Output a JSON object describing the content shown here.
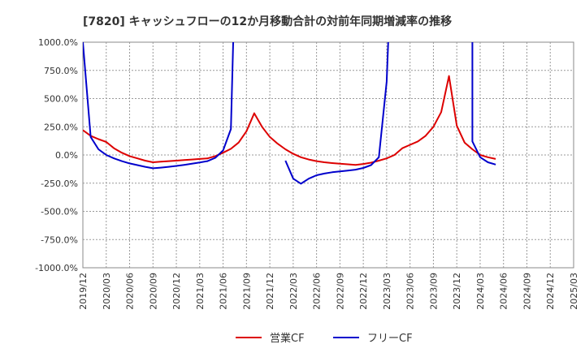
{
  "chart_data": {
    "type": "line",
    "title": "[7820]  キャッシュフローの12か月移動合計の対前年同期増減率の推移",
    "xlabel": "",
    "ylabel": "",
    "ylim": [
      -1000,
      1000
    ],
    "yticks": [
      1000,
      750,
      500,
      250,
      0,
      -250,
      -500,
      -750,
      -1000
    ],
    "ytick_labels": [
      "1000.0%",
      "750.0%",
      "500.0%",
      "250.0%",
      "0.0%",
      "-250.0%",
      "-500.0%",
      "-750.0%",
      "-1000.0%"
    ],
    "x_categories": [
      "2019/12",
      "2020/03",
      "2020/06",
      "2020/09",
      "2020/12",
      "2021/03",
      "2021/06",
      "2021/09",
      "2021/12",
      "2022/03",
      "2022/06",
      "2022/09",
      "2022/12",
      "2023/03",
      "2023/06",
      "2023/09",
      "2023/12",
      "2024/03",
      "2024/06",
      "2024/09",
      "2024/12",
      "2025/03"
    ],
    "x_month_index_start": "2019/12",
    "legend_position": "bottom",
    "series": [
      {
        "name": "営業CF",
        "color": "#dd0000",
        "points": [
          [
            0,
            220
          ],
          [
            1,
            170
          ],
          [
            2,
            140
          ],
          [
            3,
            115
          ],
          [
            4,
            60
          ],
          [
            5,
            20
          ],
          [
            6,
            -10
          ],
          [
            7,
            -30
          ],
          [
            8,
            -50
          ],
          [
            9,
            -65
          ],
          [
            10,
            -60
          ],
          [
            11,
            -55
          ],
          [
            12,
            -50
          ],
          [
            13,
            -45
          ],
          [
            14,
            -40
          ],
          [
            15,
            -35
          ],
          [
            16,
            -30
          ],
          [
            17,
            -10
          ],
          [
            18,
            20
          ],
          [
            19,
            55
          ],
          [
            20,
            110
          ],
          [
            21,
            210
          ],
          [
            22,
            370
          ],
          [
            23,
            250
          ],
          [
            24,
            160
          ],
          [
            25,
            100
          ],
          [
            26,
            50
          ],
          [
            27,
            10
          ],
          [
            28,
            -20
          ],
          [
            29,
            -40
          ],
          [
            30,
            -55
          ],
          [
            31,
            -65
          ],
          [
            32,
            -72
          ],
          [
            33,
            -78
          ],
          [
            34,
            -83
          ],
          [
            35,
            -88
          ],
          [
            36,
            -80
          ],
          [
            37,
            -68
          ],
          [
            38,
            -50
          ],
          [
            39,
            -30
          ],
          [
            40,
            0
          ],
          [
            41,
            60
          ],
          [
            42,
            90
          ],
          [
            43,
            120
          ],
          [
            44,
            170
          ],
          [
            45,
            250
          ],
          [
            46,
            380
          ],
          [
            47,
            700
          ],
          [
            48,
            260
          ],
          [
            49,
            110
          ],
          [
            50,
            50
          ],
          [
            51,
            0
          ],
          [
            52,
            -20
          ],
          [
            53,
            -35
          ]
        ]
      },
      {
        "name": "フリーCF",
        "color": "#0000cc",
        "segments": [
          [
            [
              0,
              1000
            ],
            [
              1,
              160
            ],
            [
              2,
              50
            ],
            [
              3,
              0
            ],
            [
              4,
              -30
            ],
            [
              5,
              -55
            ],
            [
              6,
              -75
            ],
            [
              7,
              -90
            ],
            [
              8,
              -105
            ],
            [
              9,
              -118
            ],
            [
              10,
              -112
            ],
            [
              11,
              -105
            ],
            [
              12,
              -97
            ],
            [
              13,
              -88
            ],
            [
              14,
              -78
            ],
            [
              15,
              -67
            ],
            [
              16,
              -55
            ],
            [
              17,
              -25
            ],
            [
              18,
              40
            ],
            [
              19,
              230
            ],
            [
              19.3,
              1000
            ]
          ],
          [
            [
              26,
              -50
            ],
            [
              27,
              -210
            ],
            [
              28,
              -255
            ],
            [
              29,
              -210
            ],
            [
              30,
              -180
            ],
            [
              31,
              -165
            ],
            [
              32,
              -153
            ],
            [
              33,
              -145
            ],
            [
              34,
              -138
            ],
            [
              35,
              -130
            ],
            [
              36,
              -115
            ],
            [
              37,
              -90
            ],
            [
              38,
              -20
            ],
            [
              39,
              650
            ],
            [
              39.2,
              1000
            ]
          ],
          [
            [
              50,
              1000
            ],
            [
              50,
              120
            ],
            [
              51,
              -20
            ],
            [
              52,
              -65
            ],
            [
              53,
              -85
            ]
          ]
        ]
      }
    ]
  }
}
